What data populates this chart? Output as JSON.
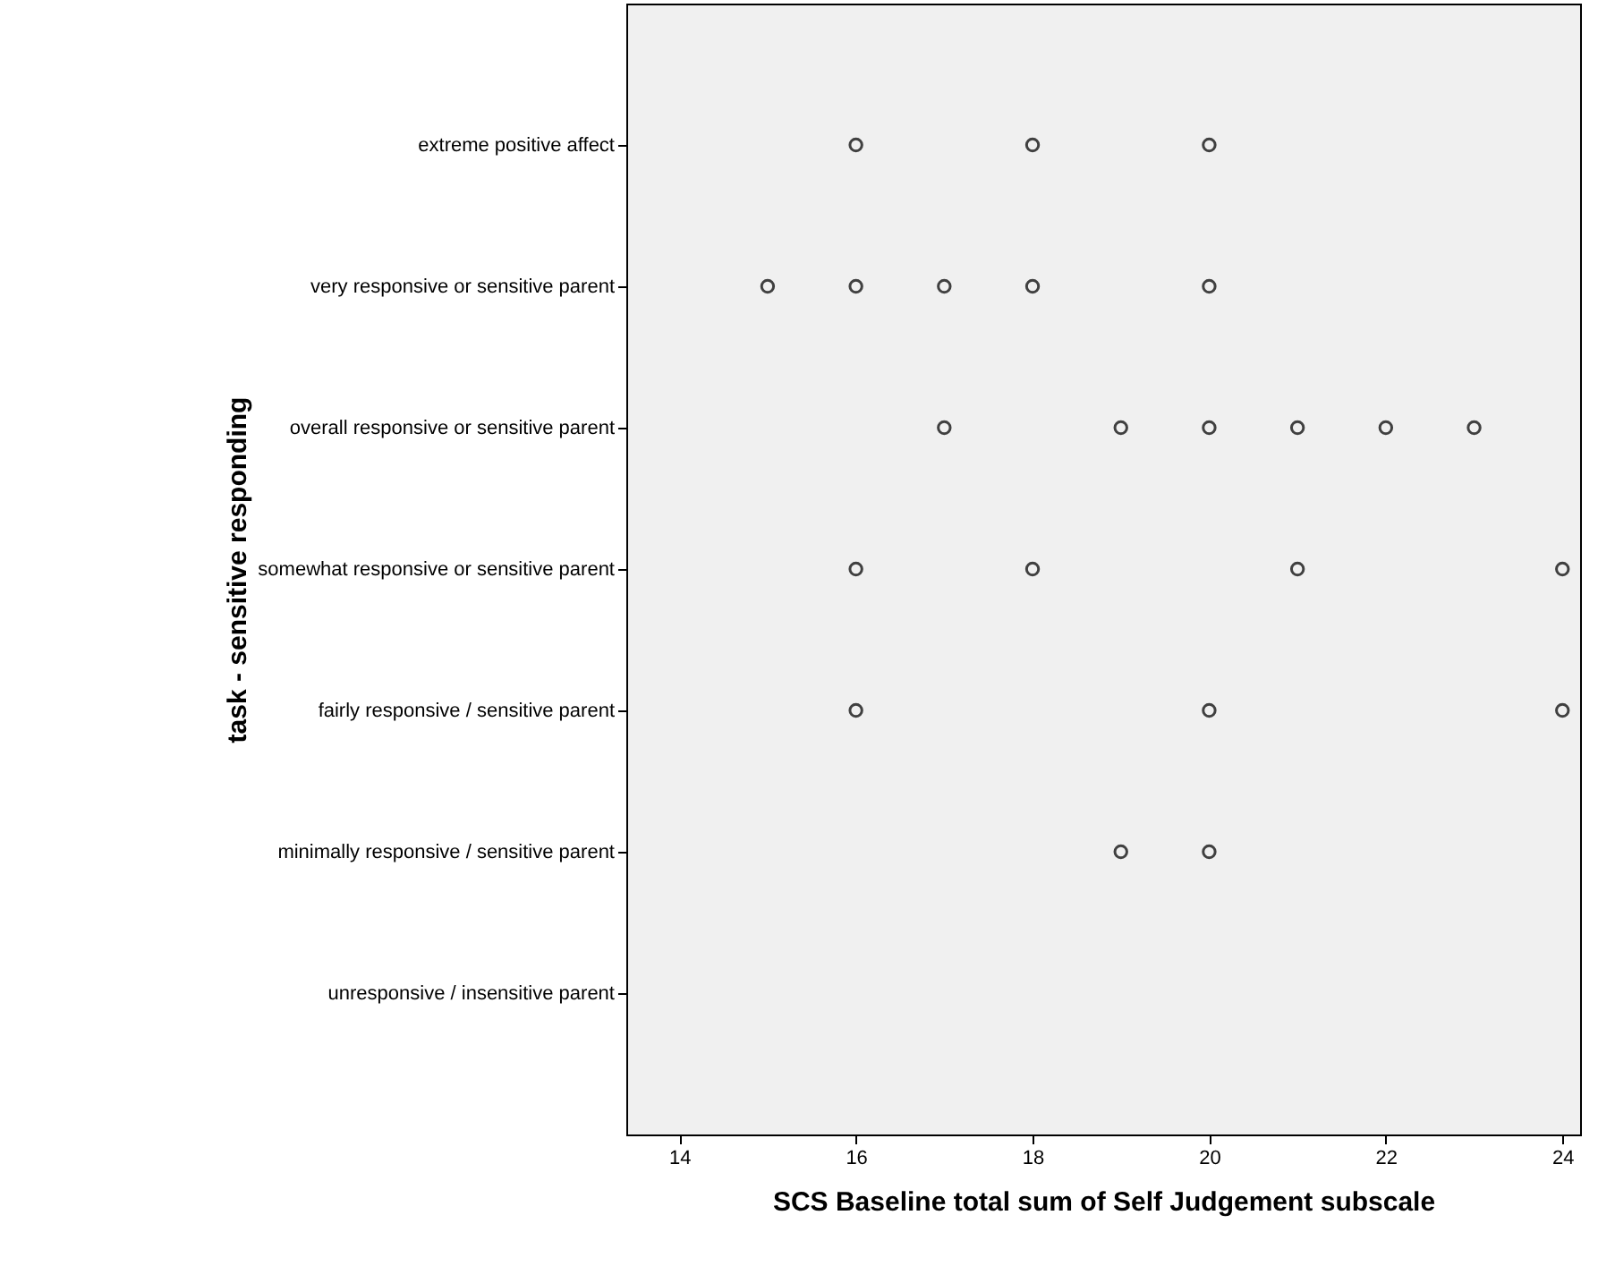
{
  "chart_data": {
    "type": "scatter",
    "orientation": "horizontal",
    "xlabel": "SCS Baseline total sum of Self Judgement subscale",
    "ylabel": "task - sensitive responding",
    "categories": [
      "extreme positive affect",
      "very responsive or sensitive parent",
      "overall responsive or sensitive parent",
      "somewhat responsive or sensitive parent",
      "fairly responsive / sensitive parent",
      "minimally responsive / sensitive parent",
      "unresponsive / insensitive parent"
    ],
    "series": [
      {
        "color": "#404040",
        "values": [
          16,
          15,
          17,
          16,
          16,
          19,
          null
        ]
      },
      {
        "color": "#404040",
        "values": [
          18,
          16,
          19,
          18,
          20,
          20,
          null
        ]
      },
      {
        "color": "#404040",
        "values": [
          20,
          17,
          20,
          21,
          24,
          null,
          null
        ]
      },
      {
        "color": "#404040",
        "values": [
          null,
          18,
          21,
          24,
          null,
          null,
          null
        ]
      },
      {
        "color": "#404040",
        "values": [
          null,
          20,
          22,
          null,
          null,
          null,
          null
        ]
      },
      {
        "color": "#404040",
        "values": [
          null,
          null,
          23,
          null,
          null,
          null,
          null
        ]
      }
    ],
    "xlim": [
      13.4,
      24.2
    ],
    "xticks": [
      14,
      16,
      18,
      20,
      22,
      24
    ],
    "marker": "circle",
    "grid": false
  }
}
